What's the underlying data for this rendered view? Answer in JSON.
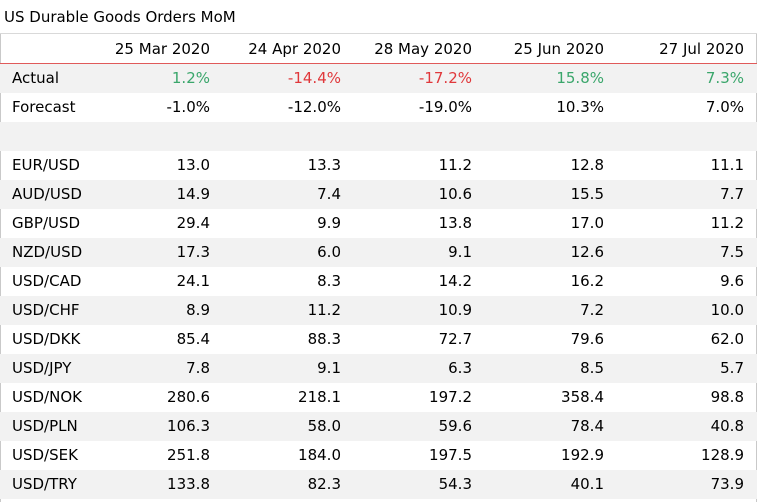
{
  "title": "US Durable Goods Orders MoM",
  "columns": [
    "",
    "25 Mar 2020",
    "24 Apr 2020",
    "28 May 2020",
    "25 Jun 2020",
    "27 Jul 2020"
  ],
  "actual": {
    "label": "Actual",
    "values": [
      "1.2%",
      "-14.4%",
      "-17.2%",
      "15.8%",
      "7.3%"
    ],
    "tones": [
      "pos",
      "neg",
      "neg",
      "pos",
      "pos"
    ]
  },
  "forecast": {
    "label": "Forecast",
    "values": [
      "-1.0%",
      "-12.0%",
      "-19.0%",
      "10.3%",
      "7.0%"
    ]
  },
  "pairs": [
    {
      "label": "EUR/USD",
      "values": [
        "13.0",
        "13.3",
        "11.2",
        "12.8",
        "11.1"
      ]
    },
    {
      "label": "AUD/USD",
      "values": [
        "14.9",
        "7.4",
        "10.6",
        "15.5",
        "7.7"
      ]
    },
    {
      "label": "GBP/USD",
      "values": [
        "29.4",
        "9.9",
        "13.8",
        "17.0",
        "11.2"
      ]
    },
    {
      "label": "NZD/USD",
      "values": [
        "17.3",
        "6.0",
        "9.1",
        "12.6",
        "7.5"
      ]
    },
    {
      "label": "USD/CAD",
      "values": [
        "24.1",
        "8.3",
        "14.2",
        "16.2",
        "9.6"
      ]
    },
    {
      "label": "USD/CHF",
      "values": [
        "8.9",
        "11.2",
        "10.9",
        "7.2",
        "10.0"
      ]
    },
    {
      "label": "USD/DKK",
      "values": [
        "85.4",
        "88.3",
        "72.7",
        "79.6",
        "62.0"
      ]
    },
    {
      "label": "USD/JPY",
      "values": [
        "7.8",
        "9.1",
        "6.3",
        "8.5",
        "5.7"
      ]
    },
    {
      "label": "USD/NOK",
      "values": [
        "280.6",
        "218.1",
        "197.2",
        "358.4",
        "98.8"
      ]
    },
    {
      "label": "USD/PLN",
      "values": [
        "106.3",
        "58.0",
        "59.6",
        "78.4",
        "40.8"
      ]
    },
    {
      "label": "USD/SEK",
      "values": [
        "251.8",
        "184.0",
        "197.5",
        "192.9",
        "128.9"
      ]
    },
    {
      "label": "USD/TRY",
      "values": [
        "133.8",
        "82.3",
        "54.3",
        "40.1",
        "73.9"
      ]
    }
  ],
  "colors": {
    "positive": "#3aa66b",
    "negative": "#e0383b",
    "header_rule": "#e05a5a",
    "stripe": "#f2f2f2"
  },
  "chart_data": {
    "type": "table",
    "title": "US Durable Goods Orders MoM",
    "columns": [
      "25 Mar 2020",
      "24 Apr 2020",
      "28 May 2020",
      "25 Jun 2020",
      "27 Jul 2020"
    ],
    "rows": [
      {
        "name": "Actual",
        "values": [
          1.2,
          -14.4,
          -17.2,
          15.8,
          7.3
        ],
        "unit": "%"
      },
      {
        "name": "Forecast",
        "values": [
          -1.0,
          -12.0,
          -19.0,
          10.3,
          7.0
        ],
        "unit": "%"
      },
      {
        "name": "EUR/USD",
        "values": [
          13.0,
          13.3,
          11.2,
          12.8,
          11.1
        ]
      },
      {
        "name": "AUD/USD",
        "values": [
          14.9,
          7.4,
          10.6,
          15.5,
          7.7
        ]
      },
      {
        "name": "GBP/USD",
        "values": [
          29.4,
          9.9,
          13.8,
          17.0,
          11.2
        ]
      },
      {
        "name": "NZD/USD",
        "values": [
          17.3,
          6.0,
          9.1,
          12.6,
          7.5
        ]
      },
      {
        "name": "USD/CAD",
        "values": [
          24.1,
          8.3,
          14.2,
          16.2,
          9.6
        ]
      },
      {
        "name": "USD/CHF",
        "values": [
          8.9,
          11.2,
          10.9,
          7.2,
          10.0
        ]
      },
      {
        "name": "USD/DKK",
        "values": [
          85.4,
          88.3,
          72.7,
          79.6,
          62.0
        ]
      },
      {
        "name": "USD/JPY",
        "values": [
          7.8,
          9.1,
          6.3,
          8.5,
          5.7
        ]
      },
      {
        "name": "USD/NOK",
        "values": [
          280.6,
          218.1,
          197.2,
          358.4,
          98.8
        ]
      },
      {
        "name": "USD/PLN",
        "values": [
          106.3,
          58.0,
          59.6,
          78.4,
          40.8
        ]
      },
      {
        "name": "USD/SEK",
        "values": [
          251.8,
          184.0,
          197.5,
          192.9,
          128.9
        ]
      },
      {
        "name": "USD/TRY",
        "values": [
          133.8,
          82.3,
          54.3,
          40.1,
          73.9
        ]
      }
    ]
  }
}
